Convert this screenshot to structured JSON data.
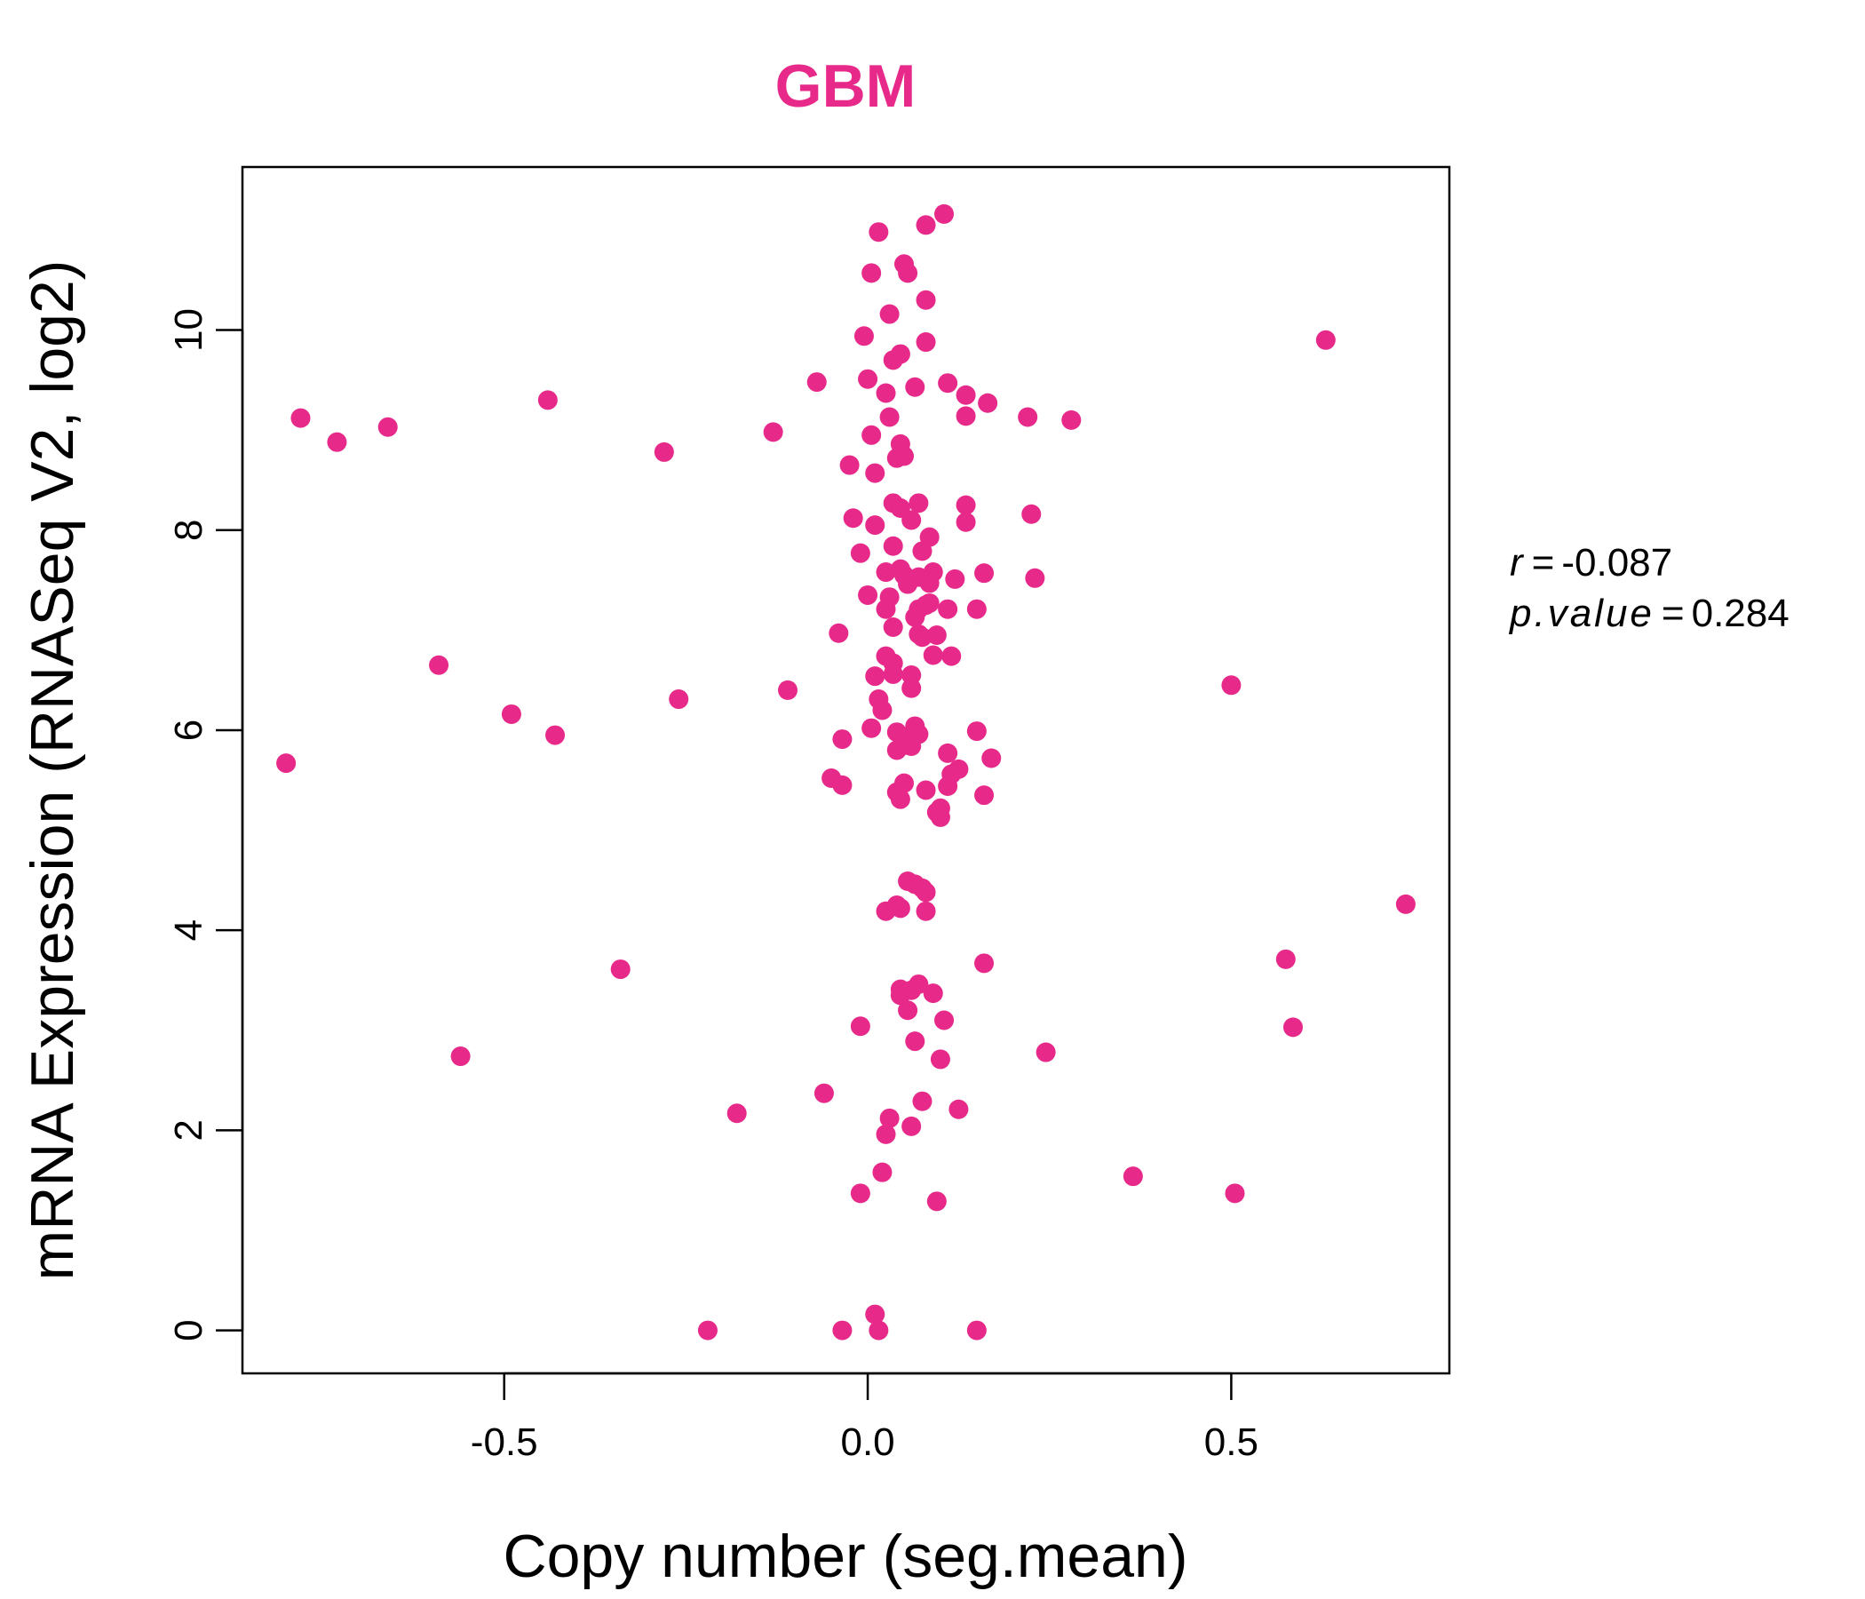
{
  "chart_data": {
    "type": "scatter",
    "title": "GBM",
    "xlabel": "Copy number (seg.mean)",
    "ylabel": "mRNA Expression (RNASeq V2, log2)",
    "xlim": [
      -0.86,
      0.8
    ],
    "ylim": [
      -0.43,
      11.63
    ],
    "x_ticks": [
      -0.5,
      0.0,
      0.5
    ],
    "x_tick_labels": [
      "-0.5",
      "0.0",
      "0.5"
    ],
    "y_ticks": [
      0,
      2,
      4,
      6,
      8,
      10
    ],
    "y_tick_labels": [
      "0",
      "2",
      "4",
      "6",
      "8",
      "10"
    ],
    "grid": false,
    "legend": "none",
    "point_color": "#E7298A",
    "title_color": "#E7298A",
    "stats": {
      "r_label": "r",
      "r_value": "-0.087",
      "p_label": "p.value",
      "p_value": "0.284"
    },
    "series": [
      {
        "points": [
          [
            -0.8,
            5.67
          ],
          [
            -0.78,
            9.12
          ],
          [
            -0.73,
            8.88
          ],
          [
            -0.66,
            9.03
          ],
          [
            -0.59,
            6.65
          ],
          [
            -0.56,
            2.74
          ],
          [
            -0.49,
            6.16
          ],
          [
            -0.44,
            9.3
          ],
          [
            -0.43,
            5.95
          ],
          [
            -0.34,
            3.61
          ],
          [
            -0.28,
            8.78
          ],
          [
            -0.26,
            6.31
          ],
          [
            -0.22,
            0.0
          ],
          [
            -0.18,
            2.17
          ],
          [
            -0.13,
            8.98
          ],
          [
            -0.11,
            6.4
          ],
          [
            -0.07,
            9.48
          ],
          [
            -0.06,
            2.37
          ],
          [
            -0.05,
            5.52
          ],
          [
            -0.04,
            6.97
          ],
          [
            -0.035,
            5.91
          ],
          [
            -0.035,
            5.45
          ],
          [
            -0.035,
            0.0
          ],
          [
            -0.025,
            8.65
          ],
          [
            -0.02,
            8.12
          ],
          [
            -0.01,
            7.77
          ],
          [
            -0.01,
            3.04
          ],
          [
            -0.01,
            1.37
          ],
          [
            -0.005,
            9.94
          ],
          [
            0.0,
            9.51
          ],
          [
            0.0,
            7.35
          ],
          [
            0.005,
            10.57
          ],
          [
            0.005,
            8.95
          ],
          [
            0.005,
            6.02
          ],
          [
            0.01,
            8.57
          ],
          [
            0.01,
            8.05
          ],
          [
            0.01,
            6.54
          ],
          [
            0.01,
            0.16
          ],
          [
            0.015,
            10.98
          ],
          [
            0.015,
            6.31
          ],
          [
            0.015,
            0.0
          ],
          [
            0.02,
            6.2
          ],
          [
            0.02,
            1.58
          ],
          [
            0.025,
            9.37
          ],
          [
            0.025,
            7.58
          ],
          [
            0.025,
            7.21
          ],
          [
            0.025,
            6.74
          ],
          [
            0.025,
            4.19
          ],
          [
            0.025,
            1.96
          ],
          [
            0.03,
            10.16
          ],
          [
            0.03,
            9.13
          ],
          [
            0.03,
            7.33
          ],
          [
            0.03,
            2.12
          ],
          [
            0.035,
            9.7
          ],
          [
            0.035,
            8.27
          ],
          [
            0.035,
            7.84
          ],
          [
            0.035,
            7.03
          ],
          [
            0.035,
            6.67
          ],
          [
            0.035,
            6.56
          ],
          [
            0.04,
            8.72
          ],
          [
            0.04,
            5.98
          ],
          [
            0.04,
            5.8
          ],
          [
            0.04,
            5.38
          ],
          [
            0.04,
            4.25
          ],
          [
            0.045,
            9.76
          ],
          [
            0.045,
            8.86
          ],
          [
            0.045,
            8.22
          ],
          [
            0.045,
            7.61
          ],
          [
            0.045,
            5.31
          ],
          [
            0.045,
            4.22
          ],
          [
            0.045,
            3.41
          ],
          [
            0.045,
            3.35
          ],
          [
            0.05,
            10.66
          ],
          [
            0.05,
            8.74
          ],
          [
            0.05,
            5.47
          ],
          [
            0.05,
            7.55
          ],
          [
            0.055,
            10.57
          ],
          [
            0.055,
            7.46
          ],
          [
            0.055,
            5.85
          ],
          [
            0.055,
            4.49
          ],
          [
            0.055,
            3.2
          ],
          [
            0.06,
            8.1
          ],
          [
            0.06,
            6.55
          ],
          [
            0.06,
            6.42
          ],
          [
            0.06,
            5.84
          ],
          [
            0.06,
            3.4
          ],
          [
            0.06,
            2.04
          ],
          [
            0.065,
            9.43
          ],
          [
            0.065,
            7.13
          ],
          [
            0.065,
            6.04
          ],
          [
            0.065,
            5.95
          ],
          [
            0.065,
            4.46
          ],
          [
            0.065,
            2.89
          ],
          [
            0.07,
            8.27
          ],
          [
            0.07,
            7.53
          ],
          [
            0.07,
            7.21
          ],
          [
            0.07,
            6.96
          ],
          [
            0.07,
            5.96
          ],
          [
            0.07,
            3.46
          ],
          [
            0.075,
            7.79
          ],
          [
            0.075,
            6.93
          ],
          [
            0.075,
            4.42
          ],
          [
            0.075,
            2.29
          ],
          [
            0.08,
            11.05
          ],
          [
            0.08,
            10.3
          ],
          [
            0.08,
            9.88
          ],
          [
            0.08,
            7.25
          ],
          [
            0.08,
            5.4
          ],
          [
            0.08,
            4.19
          ],
          [
            0.08,
            4.38
          ],
          [
            0.085,
            7.93
          ],
          [
            0.085,
            7.47
          ],
          [
            0.085,
            7.27
          ],
          [
            0.09,
            7.58
          ],
          [
            0.09,
            6.75
          ],
          [
            0.09,
            3.37
          ],
          [
            0.095,
            6.95
          ],
          [
            0.095,
            5.18
          ],
          [
            0.095,
            1.29
          ],
          [
            0.1,
            5.22
          ],
          [
            0.1,
            5.13
          ],
          [
            0.1,
            2.71
          ],
          [
            0.105,
            11.16
          ],
          [
            0.105,
            3.1
          ],
          [
            0.11,
            9.47
          ],
          [
            0.11,
            7.21
          ],
          [
            0.11,
            5.77
          ],
          [
            0.11,
            5.44
          ],
          [
            0.115,
            6.74
          ],
          [
            0.115,
            5.56
          ],
          [
            0.12,
            7.51
          ],
          [
            0.125,
            5.61
          ],
          [
            0.125,
            2.21
          ],
          [
            0.135,
            9.35
          ],
          [
            0.135,
            8.25
          ],
          [
            0.135,
            8.08
          ],
          [
            0.135,
            9.14
          ],
          [
            0.15,
            5.99
          ],
          [
            0.15,
            7.21
          ],
          [
            0.15,
            0.0
          ],
          [
            0.16,
            7.57
          ],
          [
            0.16,
            5.35
          ],
          [
            0.16,
            3.67
          ],
          [
            0.165,
            9.27
          ],
          [
            0.17,
            5.72
          ],
          [
            0.22,
            9.13
          ],
          [
            0.225,
            8.16
          ],
          [
            0.23,
            7.52
          ],
          [
            0.245,
            2.78
          ],
          [
            0.28,
            9.1
          ],
          [
            0.365,
            1.54
          ],
          [
            0.5,
            6.45
          ],
          [
            0.505,
            1.37
          ],
          [
            0.575,
            3.71
          ],
          [
            0.585,
            3.03
          ],
          [
            0.63,
            9.9
          ],
          [
            0.74,
            4.26
          ]
        ]
      }
    ]
  }
}
